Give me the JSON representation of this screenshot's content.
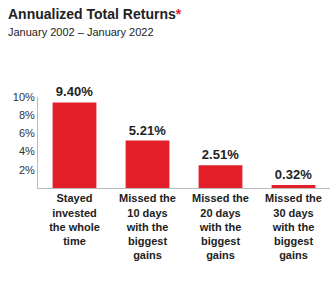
{
  "chart_data": {
    "type": "bar",
    "title": "Annualized Total Returns*",
    "subtitle": "January 2002 – January 2022",
    "categories": [
      "Stayed invested the whole time",
      "Missed the 10 days with the biggest gains",
      "Missed the 20 days with the biggest gains",
      "Missed the 30 days with the biggest gains"
    ],
    "values": [
      9.4,
      5.21,
      2.51,
      0.32
    ],
    "value_labels": [
      "9.40%",
      "5.21%",
      "2.51%",
      "0.32%"
    ],
    "data_labels": true,
    "color": "#e3202a",
    "ylim": [
      0,
      10
    ],
    "yticks": [
      {
        "value": 2,
        "label": "2%"
      },
      {
        "value": 4,
        "label": "4%"
      },
      {
        "value": 6,
        "label": "6%"
      },
      {
        "value": 8,
        "label": "8%"
      },
      {
        "value": 10,
        "label": "10%"
      }
    ],
    "grid": false
  }
}
